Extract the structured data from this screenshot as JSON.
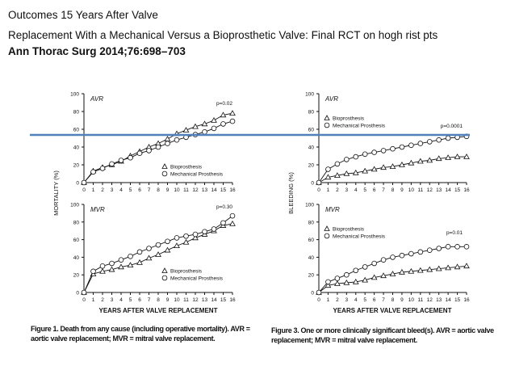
{
  "header": {
    "line1": "Outcomes 15 Years After Valve",
    "line2": "Replacement With a Mechanical Versus a Bioprosthetic Valve: Final RCT on hogh rist pts",
    "line3": "Ann Thorac Surg 2014;76:698–703"
  },
  "captions": {
    "fig1_label": "Figure 1.",
    "fig1_text": " Death from any cause (including operative mortality). AVR = aortic valve replacement; MVR = mitral valve replacement.",
    "fig3_label": "Figure 3.",
    "fig3_text": " One or more clinically significant bleed(s). AVR = aortic valve replacement; MVR = mitral valve replacement."
  },
  "colors": {
    "highlight_line": "#4f81bd",
    "ink": "#111111"
  },
  "chart_data": [
    {
      "id": "mortality-avr",
      "type": "line",
      "panel": "AVR",
      "pvalue": "p=0.02",
      "ylabel": "MORTALITY (%)",
      "xlabel": "YEARS AFTER VALVE REPLACEMENT",
      "ylim": [
        0,
        100
      ],
      "yticks": [
        0,
        20,
        40,
        60,
        80,
        100
      ],
      "xticks": [
        "0",
        "1",
        "2",
        "3",
        "4",
        "5",
        "6",
        "7",
        "8",
        "9",
        "10",
        "11",
        "12",
        "13",
        "14",
        "15",
        "16"
      ],
      "legend_position": "bottom-right",
      "series": [
        {
          "name": "Bioprosthesis",
          "marker": "triangle",
          "x": [
            0,
            1,
            2,
            3,
            4,
            5,
            6,
            7,
            8,
            9,
            10,
            11,
            12,
            13,
            14,
            15,
            16
          ],
          "values": [
            0,
            13,
            17,
            20,
            24,
            30,
            35,
            40,
            44,
            49,
            55,
            59,
            63,
            66,
            70,
            76,
            78
          ]
        },
        {
          "name": "Mechanical Prosthesis",
          "marker": "circle",
          "x": [
            0,
            1,
            2,
            3,
            4,
            5,
            6,
            7,
            8,
            9,
            10,
            11,
            12,
            13,
            14,
            15,
            16
          ],
          "values": [
            0,
            12,
            16,
            21,
            25,
            28,
            33,
            36,
            40,
            44,
            48,
            51,
            54,
            57,
            61,
            66,
            69
          ]
        }
      ]
    },
    {
      "id": "mortality-mvr",
      "type": "line",
      "panel": "MVR",
      "pvalue": "p=0.30",
      "ylabel": "MORTALITY (%)",
      "xlabel": "YEARS AFTER VALVE REPLACEMENT",
      "ylim": [
        0,
        100
      ],
      "yticks": [
        0,
        20,
        40,
        60,
        80,
        100
      ],
      "xticks": [
        "0",
        "1",
        "2",
        "3",
        "4",
        "5",
        "6",
        "7",
        "8",
        "9",
        "10",
        "11",
        "12",
        "13",
        "14",
        "15",
        "16"
      ],
      "legend_position": "bottom-right",
      "series": [
        {
          "name": "Bioprosthesis",
          "marker": "triangle",
          "x": [
            0,
            1,
            2,
            3,
            4,
            5,
            6,
            7,
            8,
            9,
            10,
            11,
            12,
            13,
            14,
            15,
            16
          ],
          "values": [
            0,
            21,
            24,
            26,
            29,
            31,
            34,
            39,
            43,
            48,
            53,
            57,
            62,
            66,
            70,
            76,
            78
          ]
        },
        {
          "name": "Mechanical Prosthesis",
          "marker": "circle",
          "x": [
            0,
            1,
            2,
            3,
            4,
            5,
            6,
            7,
            8,
            9,
            10,
            11,
            12,
            13,
            14,
            15,
            16
          ],
          "values": [
            0,
            24,
            30,
            33,
            37,
            41,
            46,
            50,
            54,
            58,
            62,
            64,
            66,
            69,
            72,
            79,
            87
          ]
        }
      ]
    },
    {
      "id": "bleeding-avr",
      "type": "line",
      "panel": "AVR",
      "pvalue": "p=0.0001",
      "ylabel": "BLEEDING (%)",
      "xlabel": "YEARS AFTER VALVE REPLACEMENT",
      "ylim": [
        0,
        100
      ],
      "yticks": [
        0,
        20,
        40,
        60,
        80,
        100
      ],
      "xticks": [
        "0",
        "1",
        "2",
        "3",
        "4",
        "5",
        "6",
        "7",
        "8",
        "9",
        "10",
        "11",
        "12",
        "13",
        "14",
        "15",
        "16"
      ],
      "legend_position": "top-left",
      "series": [
        {
          "name": "Bioprosthesis",
          "marker": "triangle",
          "x": [
            0,
            1,
            2,
            3,
            4,
            5,
            6,
            7,
            8,
            9,
            10,
            11,
            12,
            13,
            14,
            15,
            16
          ],
          "values": [
            0,
            6,
            8,
            10,
            11,
            13,
            15,
            17,
            18,
            20,
            22,
            24,
            25,
            27,
            28,
            29,
            29
          ]
        },
        {
          "name": "Mechanical Prosthesis",
          "marker": "circle",
          "x": [
            0,
            1,
            2,
            3,
            4,
            5,
            6,
            7,
            8,
            9,
            10,
            11,
            12,
            13,
            14,
            15,
            16
          ],
          "values": [
            0,
            15,
            21,
            26,
            29,
            32,
            34,
            36,
            38,
            40,
            42,
            44,
            46,
            48,
            50,
            51,
            52
          ]
        }
      ]
    },
    {
      "id": "bleeding-mvr",
      "type": "line",
      "panel": "MVR",
      "pvalue": "p=0.01",
      "ylabel": "BLEEDING (%)",
      "xlabel": "YEARS AFTER VALVE REPLACEMENT",
      "ylim": [
        0,
        100
      ],
      "yticks": [
        0,
        20,
        40,
        60,
        80,
        100
      ],
      "xticks": [
        "0",
        "1",
        "2",
        "3",
        "4",
        "5",
        "6",
        "7",
        "8",
        "9",
        "10",
        "11",
        "12",
        "13",
        "14",
        "15",
        "16"
      ],
      "legend_position": "top-left",
      "series": [
        {
          "name": "Bioprosthesis",
          "marker": "triangle",
          "x": [
            0,
            1,
            2,
            3,
            4,
            5,
            6,
            7,
            8,
            9,
            10,
            11,
            12,
            13,
            14,
            15,
            16
          ],
          "values": [
            0,
            8,
            10,
            11,
            12,
            14,
            17,
            19,
            21,
            23,
            24,
            25,
            26,
            27,
            28,
            29,
            30
          ]
        },
        {
          "name": "Mechanical Prosthesis",
          "marker": "circle",
          "x": [
            0,
            1,
            2,
            3,
            4,
            5,
            6,
            7,
            8,
            9,
            10,
            11,
            12,
            13,
            14,
            15,
            16
          ],
          "values": [
            0,
            12,
            16,
            20,
            25,
            29,
            33,
            37,
            40,
            42,
            44,
            46,
            48,
            50,
            52,
            52,
            52
          ]
        }
      ]
    }
  ]
}
